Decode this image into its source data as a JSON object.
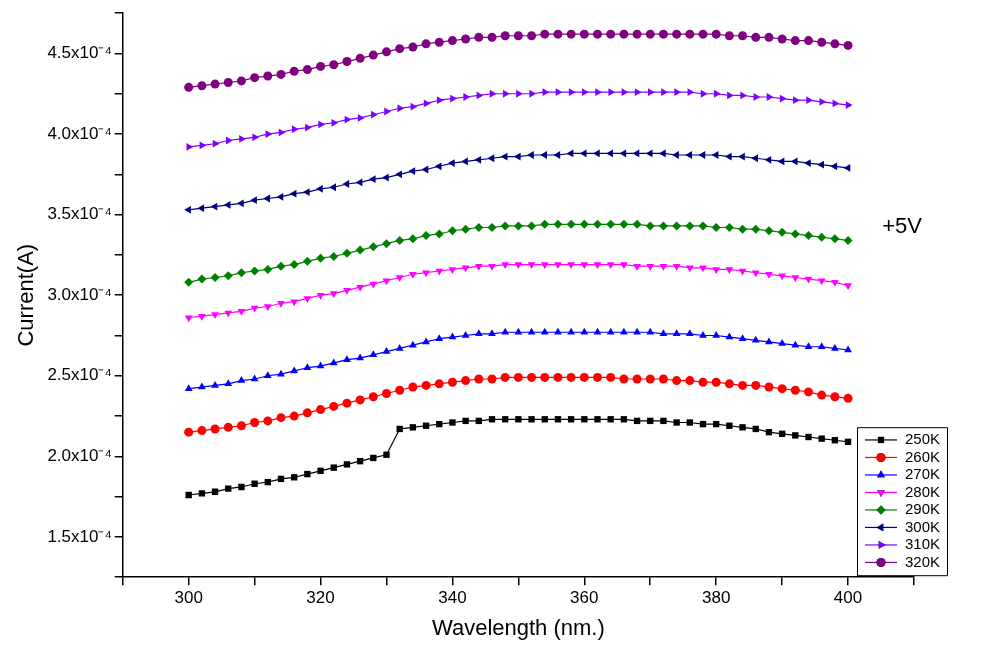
{
  "chart_data": {
    "type": "line",
    "xlabel": "Wavelength (nm.)",
    "ylabel": "Current(A)",
    "x": [
      300,
      302,
      304,
      306,
      308,
      310,
      312,
      314,
      316,
      318,
      320,
      322,
      324,
      326,
      328,
      330,
      332,
      334,
      336,
      338,
      340,
      342,
      344,
      346,
      348,
      350,
      352,
      354,
      356,
      358,
      360,
      362,
      364,
      366,
      368,
      370,
      372,
      374,
      376,
      378,
      380,
      382,
      384,
      386,
      388,
      390,
      392,
      394,
      396,
      398,
      400
    ],
    "xlim": [
      290,
      410
    ],
    "xticks": [
      {
        "value": 290,
        "label": null
      },
      300,
      {
        "value": 310,
        "label": null
      },
      320,
      {
        "value": 330,
        "label": null
      },
      340,
      {
        "value": 350,
        "label": null
      },
      360,
      {
        "value": 370,
        "label": null
      },
      380,
      {
        "value": 390,
        "label": null
      },
      400,
      {
        "value": 410,
        "label": null
      }
    ],
    "ylim": [
      0.000125,
      0.000475
    ],
    "yticks": [
      {
        "value": 0.000125,
        "label": null
      },
      {
        "value": 0.00015,
        "label": "1.5x10⁻⁴"
      },
      {
        "value": 0.000175,
        "label": null
      },
      {
        "value": 0.0002,
        "label": "2.0x10⁻⁴"
      },
      {
        "value": 0.000225,
        "label": null
      },
      {
        "value": 0.00025,
        "label": "2.5x10⁻⁴"
      },
      {
        "value": 0.000275,
        "label": null
      },
      {
        "value": 0.0003,
        "label": "3.0x10⁻⁴"
      },
      {
        "value": 0.000325,
        "label": null
      },
      {
        "value": 0.00035,
        "label": "3.5x10⁻⁴"
      },
      {
        "value": 0.000375,
        "label": null
      },
      {
        "value": 0.0004,
        "label": "4.0x10⁻⁴"
      },
      {
        "value": 0.000425,
        "label": null
      },
      {
        "value": 0.00045,
        "label": "4.5x10⁻⁴"
      },
      {
        "value": 0.000475,
        "label": null
      }
    ],
    "grid": false,
    "legend": "bottom right",
    "line_style": "solid",
    "annotations": [
      "+5V"
    ],
    "series": [
      {
        "name": "250K",
        "color": "#000000",
        "marker": "square",
        "values": [
          0.000176,
          0.000177,
          0.000178,
          0.00018,
          0.000181,
          0.000183,
          0.000184,
          0.000186,
          0.000187,
          0.000189,
          0.000191,
          0.000193,
          0.000195,
          0.000197,
          0.000199,
          0.000201,
          0.000217,
          0.000218,
          0.000219,
          0.00022,
          0.000221,
          0.000222,
          0.000222,
          0.000223,
          0.000223,
          0.000223,
          0.000223,
          0.000223,
          0.000223,
          0.000223,
          0.000223,
          0.000223,
          0.000223,
          0.000223,
          0.000222,
          0.000222,
          0.000222,
          0.000221,
          0.000221,
          0.00022,
          0.00022,
          0.000219,
          0.000218,
          0.000217,
          0.000215,
          0.000214,
          0.000213,
          0.000212,
          0.000211,
          0.00021,
          0.000209
        ]
      },
      {
        "name": "260K",
        "color": "#ff0000",
        "marker": "circle",
        "values": [
          0.000215,
          0.000216,
          0.000217,
          0.000218,
          0.000219,
          0.000221,
          0.000222,
          0.000224,
          0.000225,
          0.000227,
          0.000229,
          0.000231,
          0.000233,
          0.000235,
          0.000237,
          0.000239,
          0.000241,
          0.000243,
          0.000244,
          0.000245,
          0.000246,
          0.000247,
          0.000248,
          0.000248,
          0.000249,
          0.000249,
          0.000249,
          0.000249,
          0.000249,
          0.000249,
          0.000249,
          0.000249,
          0.000249,
          0.000248,
          0.000248,
          0.000248,
          0.000248,
          0.000247,
          0.000247,
          0.000246,
          0.000246,
          0.000245,
          0.000244,
          0.000244,
          0.000243,
          0.000242,
          0.000241,
          0.00024,
          0.000238,
          0.000237,
          0.000236
        ]
      },
      {
        "name": "270K",
        "color": "#0000ff",
        "marker": "triangle",
        "values": [
          0.000242,
          0.000243,
          0.000244,
          0.000245,
          0.000247,
          0.000248,
          0.00025,
          0.000251,
          0.000253,
          0.000255,
          0.000256,
          0.000258,
          0.00026,
          0.000261,
          0.000263,
          0.000265,
          0.000267,
          0.000269,
          0.000271,
          0.000273,
          0.000274,
          0.000275,
          0.000276,
          0.000276,
          0.000277,
          0.000277,
          0.000277,
          0.000277,
          0.000277,
          0.000277,
          0.000277,
          0.000277,
          0.000277,
          0.000277,
          0.000277,
          0.000277,
          0.000276,
          0.000276,
          0.000276,
          0.000275,
          0.000275,
          0.000274,
          0.000273,
          0.000272,
          0.000271,
          0.00027,
          0.000269,
          0.000268,
          0.000268,
          0.000267,
          0.000266
        ]
      },
      {
        "name": "280K",
        "color": "#ff00ff",
        "marker": "triangle-down",
        "values": [
          0.000286,
          0.000287,
          0.000288,
          0.000289,
          0.00029,
          0.000292,
          0.000293,
          0.000295,
          0.000296,
          0.000298,
          0.0003,
          0.000301,
          0.000303,
          0.000305,
          0.000307,
          0.000309,
          0.000311,
          0.000313,
          0.000314,
          0.000315,
          0.000316,
          0.000317,
          0.000318,
          0.000318,
          0.000319,
          0.000319,
          0.000319,
          0.000319,
          0.000319,
          0.000319,
          0.000319,
          0.000319,
          0.000319,
          0.000319,
          0.000318,
          0.000318,
          0.000318,
          0.000318,
          0.000317,
          0.000317,
          0.000316,
          0.000316,
          0.000315,
          0.000314,
          0.000313,
          0.000312,
          0.000311,
          0.00031,
          0.000309,
          0.000308,
          0.000306
        ]
      },
      {
        "name": "290K",
        "color": "#008000",
        "marker": "diamond",
        "values": [
          0.000308,
          0.00031,
          0.000311,
          0.000312,
          0.000314,
          0.000315,
          0.000316,
          0.000318,
          0.000319,
          0.000321,
          0.000323,
          0.000324,
          0.000326,
          0.000328,
          0.00033,
          0.000332,
          0.000334,
          0.000335,
          0.000337,
          0.000338,
          0.00034,
          0.000341,
          0.000342,
          0.000342,
          0.000343,
          0.000343,
          0.000343,
          0.000344,
          0.000344,
          0.000344,
          0.000344,
          0.000344,
          0.000344,
          0.000344,
          0.000344,
          0.000343,
          0.000343,
          0.000343,
          0.000343,
          0.000343,
          0.000342,
          0.000342,
          0.000341,
          0.000341,
          0.00034,
          0.000339,
          0.000338,
          0.000337,
          0.000336,
          0.000335,
          0.000334
        ]
      },
      {
        "name": "300K",
        "color": "#000080",
        "marker": "triangle-left",
        "values": [
          0.000353,
          0.000354,
          0.000355,
          0.000356,
          0.000357,
          0.000359,
          0.00036,
          0.000361,
          0.000363,
          0.000364,
          0.000366,
          0.000367,
          0.000369,
          0.00037,
          0.000372,
          0.000373,
          0.000375,
          0.000377,
          0.000378,
          0.00038,
          0.000382,
          0.000383,
          0.000384,
          0.000385,
          0.000386,
          0.000386,
          0.000387,
          0.000387,
          0.000387,
          0.000388,
          0.000388,
          0.000388,
          0.000388,
          0.000388,
          0.000388,
          0.000388,
          0.000388,
          0.000387,
          0.000387,
          0.000387,
          0.000387,
          0.000386,
          0.000386,
          0.000385,
          0.000384,
          0.000383,
          0.000383,
          0.000382,
          0.000381,
          0.00038,
          0.000379
        ]
      },
      {
        "name": "310K",
        "color": "#8000ff",
        "marker": "triangle-right",
        "values": [
          0.000392,
          0.000393,
          0.000394,
          0.000396,
          0.000397,
          0.000398,
          0.0004,
          0.000401,
          0.000403,
          0.000404,
          0.000406,
          0.000407,
          0.000409,
          0.00041,
          0.000412,
          0.000414,
          0.000416,
          0.000417,
          0.000419,
          0.000421,
          0.000422,
          0.000423,
          0.000424,
          0.000425,
          0.000425,
          0.000425,
          0.000425,
          0.000426,
          0.000426,
          0.000426,
          0.000426,
          0.000426,
          0.000426,
          0.000426,
          0.000426,
          0.000426,
          0.000426,
          0.000426,
          0.000426,
          0.000425,
          0.000425,
          0.000424,
          0.000424,
          0.000423,
          0.000423,
          0.000422,
          0.000421,
          0.000421,
          0.00042,
          0.000419,
          0.000418
        ]
      },
      {
        "name": "320K",
        "color": "#800080",
        "marker": "circle",
        "values": [
          0.000429,
          0.00043,
          0.000431,
          0.000432,
          0.000433,
          0.000435,
          0.000436,
          0.000437,
          0.000439,
          0.00044,
          0.000442,
          0.000443,
          0.000445,
          0.000447,
          0.000449,
          0.000451,
          0.000453,
          0.000454,
          0.000456,
          0.000457,
          0.000458,
          0.000459,
          0.00046,
          0.00046,
          0.000461,
          0.000461,
          0.000461,
          0.000462,
          0.000462,
          0.000462,
          0.000462,
          0.000462,
          0.000462,
          0.000462,
          0.000462,
          0.000462,
          0.000462,
          0.000462,
          0.000462,
          0.000462,
          0.000462,
          0.000461,
          0.000461,
          0.00046,
          0.00046,
          0.000459,
          0.000458,
          0.000458,
          0.000457,
          0.000456,
          0.000455
        ]
      }
    ]
  }
}
